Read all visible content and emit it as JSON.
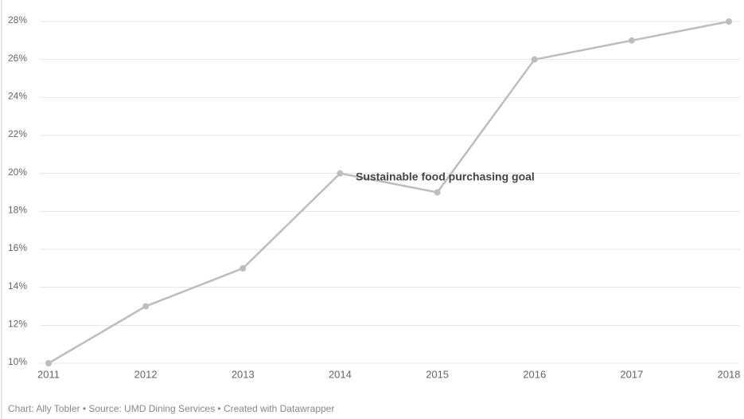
{
  "chart_data": {
    "type": "line",
    "categories": [
      "2011",
      "2012",
      "2013",
      "2014",
      "2015",
      "2016",
      "2017",
      "2018"
    ],
    "series": [
      {
        "name": "Sustainable food purchasing",
        "color": "#bdbdbd",
        "values": [
          10,
          13,
          15,
          20,
          19,
          26,
          27,
          28
        ]
      }
    ],
    "ylim": [
      10,
      28
    ],
    "yticks": [
      {
        "value": 10,
        "label": "10%"
      },
      {
        "value": 12,
        "label": "12%"
      },
      {
        "value": 14,
        "label": "14%"
      },
      {
        "value": 16,
        "label": "16%"
      },
      {
        "value": 18,
        "label": "18%"
      },
      {
        "value": 20,
        "label": "20%"
      },
      {
        "value": 22,
        "label": "22%"
      },
      {
        "value": 24,
        "label": "24%"
      },
      {
        "value": 26,
        "label": "26%"
      },
      {
        "value": 28,
        "label": "28%"
      }
    ],
    "grid": true,
    "annotation": "Sustainable food purchasing goal",
    "footer": "Chart: Ally Tobler • Source: UMD Dining Services • Created with Datawrapper"
  }
}
